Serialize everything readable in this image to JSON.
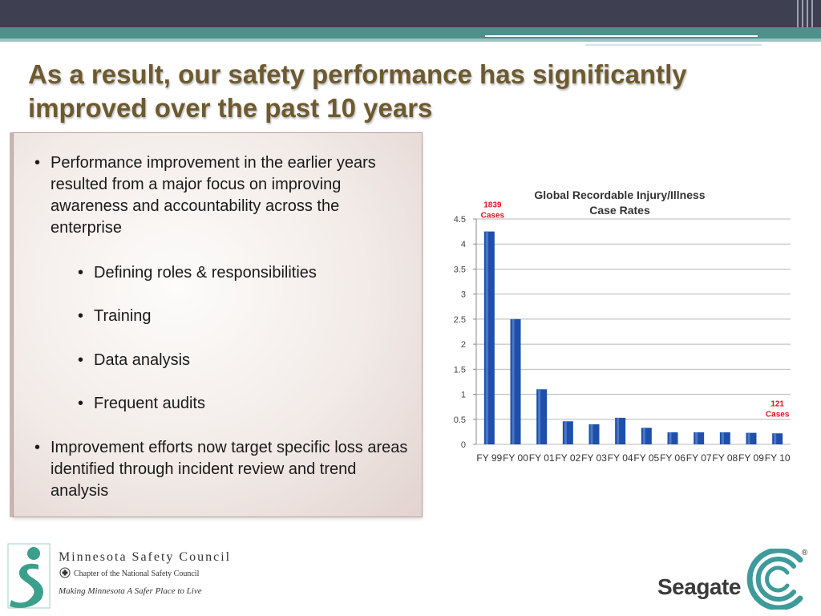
{
  "slide": {
    "title": "As a result, our safety performance has significantly improved over the past 10 years"
  },
  "bullets": [
    {
      "marker": "•",
      "text": "Performance improvement in the earlier years resulted from a major focus on improving awareness and accountability across the enterprise"
    },
    {
      "marker": "•",
      "text": "Defining roles & responsibilities"
    },
    {
      "marker": "•",
      "text": "Training"
    },
    {
      "marker": "•",
      "text": "Data analysis"
    },
    {
      "marker": "•",
      "text": "Frequent audits"
    },
    {
      "marker": "•",
      "text": "Improvement efforts now target specific loss areas identified through incident review and trend analysis"
    }
  ],
  "chart_data": {
    "type": "bar",
    "title": "Global Recordable Injury/Illness Case Rates",
    "title_lines": [
      "Global Recordable Injury/Illness",
      "Case Rates"
    ],
    "categories": [
      "FY 99",
      "FY 00",
      "FY 01",
      "FY 02",
      "FY 03",
      "FY 04",
      "FY 05",
      "FY 06",
      "FY 07",
      "FY 08",
      "FY 09",
      "FY 10"
    ],
    "values": [
      4.25,
      2.5,
      1.1,
      0.46,
      0.4,
      0.53,
      0.33,
      0.24,
      0.24,
      0.24,
      0.23,
      0.22
    ],
    "ylim": [
      0,
      4.5
    ],
    "yticks": [
      "0",
      "0.5",
      "1",
      "1.5",
      "2",
      "2.5",
      "3",
      "3.5",
      "4",
      "4.5"
    ],
    "grid": true,
    "bar_color": "#1f4fa8",
    "annotations": [
      {
        "category": "FY 99",
        "lines": [
          "1839",
          "Cases"
        ],
        "color": "#e0141e"
      },
      {
        "category": "FY 10",
        "lines": [
          "121",
          "Cases"
        ],
        "color": "#e0141e"
      }
    ]
  },
  "footer": {
    "msc_name": "Minnesota Safety Council",
    "msc_sub": "Chapter of the National Safety Council",
    "msc_slogan": "Making Minnesota A Safer Place to Live",
    "seagate_name": "Seagate",
    "seagate_reg": "®"
  },
  "colors": {
    "title": "#6e5a2e",
    "teal": "#4f8f8c",
    "topbar": "#3f3f52",
    "annotation": "#e0141e"
  }
}
